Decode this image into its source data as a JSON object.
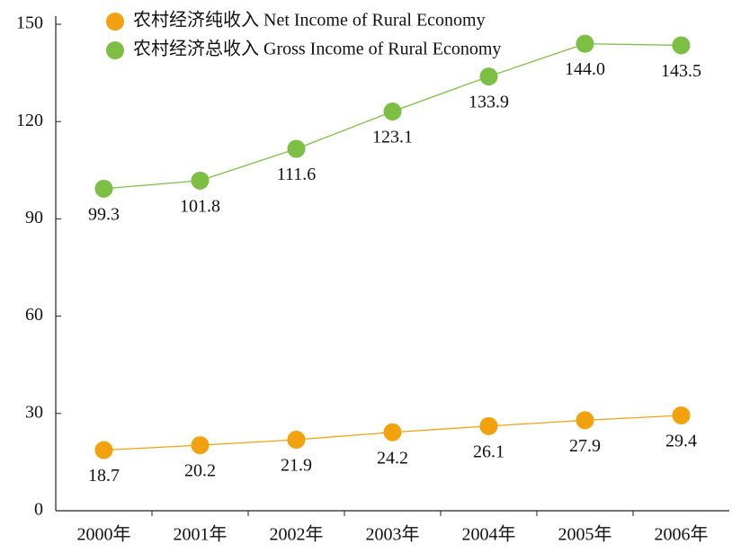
{
  "chart_data": {
    "type": "line",
    "categories": [
      "2000年",
      "2001年",
      "2002年",
      "2003年",
      "2004年",
      "2005年",
      "2006年"
    ],
    "series": [
      {
        "name": "农村经济纯收入  Net Income of Rural Economy",
        "color": "#f3a20f",
        "values": [
          18.7,
          20.2,
          21.9,
          24.2,
          26.1,
          27.9,
          29.4
        ]
      },
      {
        "name": "农村经济总收入  Gross Income of Rural Economy",
        "color": "#7dbf45",
        "values": [
          99.3,
          101.8,
          111.6,
          123.1,
          133.9,
          144.0,
          143.5
        ],
        "value_labels": [
          "99.3",
          "101.8",
          "111.6",
          "123.1",
          "133.9",
          "144.0",
          "143.5"
        ]
      }
    ],
    "ylim": [
      0,
      150
    ],
    "yticks": [
      0,
      30,
      60,
      90,
      120,
      150
    ],
    "legend": "top-left"
  }
}
